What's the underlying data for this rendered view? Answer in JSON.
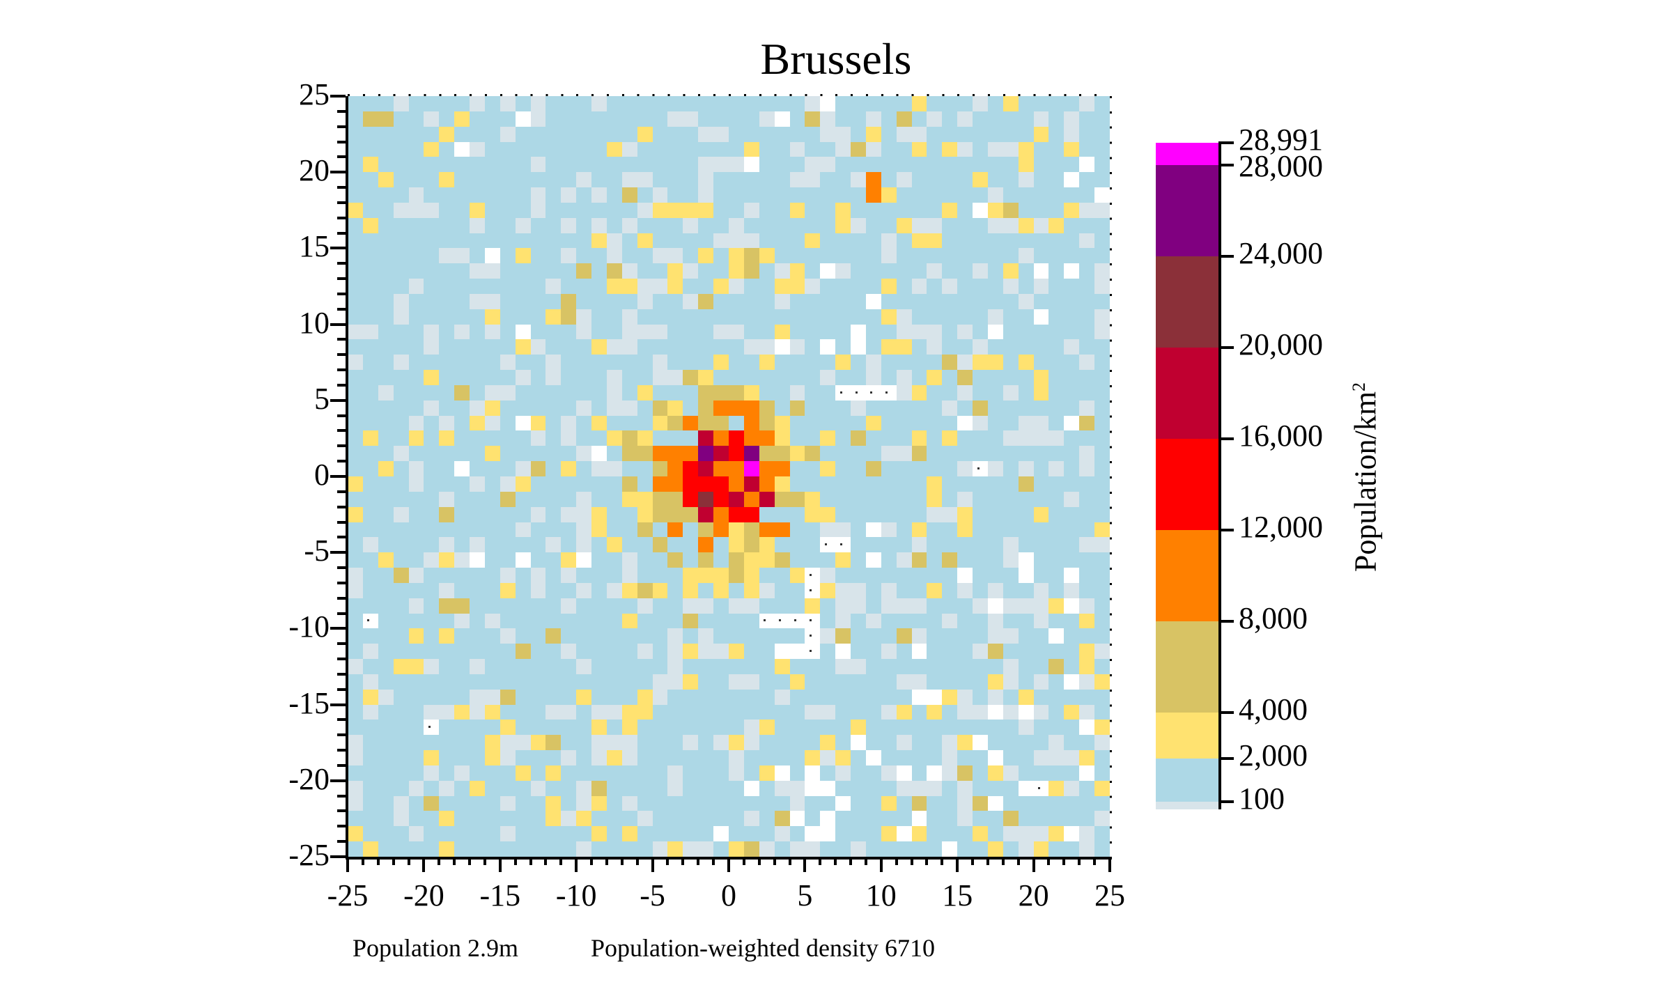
{
  "chart_data": {
    "type": "heatmap",
    "title": "Brussels",
    "xlabel": "",
    "ylabel": "",
    "xlim": [
      -25,
      25
    ],
    "ylim": [
      -25,
      25
    ],
    "x_ticks": [
      -25,
      -20,
      -15,
      -10,
      -5,
      0,
      5,
      10,
      15,
      20,
      25
    ],
    "y_ticks": [
      25,
      20,
      15,
      10,
      5,
      0,
      -5,
      -10,
      -15,
      -20,
      -25
    ],
    "grid_resolution": "50 x 50 cells (1 km each)",
    "grid_values_note": "Per-cell values are not transcribed from the image; the rendered grid is a synthetic approximation for visual resemblance only",
    "colorbar": {
      "label": "Population/km",
      "label_superscript": "2",
      "bins": [
        {
          "from": 0,
          "to": 100,
          "color": "#d8e4ea"
        },
        {
          "from": 100,
          "to": 2000,
          "color": "#add8e6"
        },
        {
          "from": 2000,
          "to": 4000,
          "color": "#ffe270"
        },
        {
          "from": 4000,
          "to": 8000,
          "color": "#d8c364"
        },
        {
          "from": 8000,
          "to": 12000,
          "color": "#ff8000"
        },
        {
          "from": 12000,
          "to": 16000,
          "color": "#ff0000"
        },
        {
          "from": 16000,
          "to": 20000,
          "color": "#c00030"
        },
        {
          "from": 20000,
          "to": 24000,
          "color": "#8b3039"
        },
        {
          "from": 24000,
          "to": 28000,
          "color": "#800080"
        },
        {
          "from": 28000,
          "to": 28991,
          "color": "#ff00ff"
        }
      ],
      "tick_labels": [
        "28,991",
        "28,000",
        "24,000",
        "20,000",
        "16,000",
        "12,000",
        "8,000",
        "4,000",
        "2,000",
        "100"
      ],
      "max": 28991
    },
    "stats": {
      "population": "2.9m",
      "population_weighted_density": 6710
    }
  },
  "footer": {
    "population": "Population 2.9m",
    "density": "Population-weighted density 6710"
  }
}
